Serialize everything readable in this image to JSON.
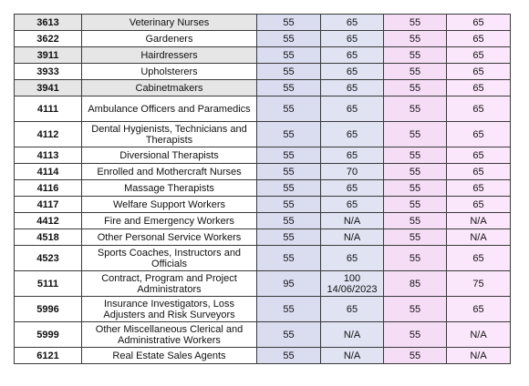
{
  "rows": [
    {
      "code": "3613",
      "title": "Veterinary Nurses",
      "v1": "55",
      "v2": "65",
      "v2_note": "",
      "v3": "55",
      "v4": "65"
    },
    {
      "code": "3622",
      "title": "Gardeners",
      "v1": "55",
      "v2": "65",
      "v2_note": "",
      "v3": "55",
      "v4": "65"
    },
    {
      "code": "3911",
      "title": "Hairdressers",
      "v1": "55",
      "v2": "65",
      "v2_note": "",
      "v3": "55",
      "v4": "65"
    },
    {
      "code": "3933",
      "title": "Upholsterers",
      "v1": "55",
      "v2": "65",
      "v2_note": "",
      "v3": "55",
      "v4": "65"
    },
    {
      "code": "3941",
      "title": "Cabinetmakers",
      "v1": "55",
      "v2": "65",
      "v2_note": "",
      "v3": "55",
      "v4": "65"
    },
    {
      "code": "4111",
      "title": "Ambulance Officers and Paramedics",
      "v1": "55",
      "v2": "65",
      "v2_note": "",
      "v3": "55",
      "v4": "65"
    },
    {
      "code": "4112",
      "title": "Dental Hygienists, Technicians and Therapists",
      "v1": "55",
      "v2": "65",
      "v2_note": "",
      "v3": "55",
      "v4": "65"
    },
    {
      "code": "4113",
      "title": "Diversional Therapists",
      "v1": "55",
      "v2": "65",
      "v2_note": "",
      "v3": "55",
      "v4": "65"
    },
    {
      "code": "4114",
      "title": "Enrolled and Mothercraft Nurses",
      "v1": "55",
      "v2": "70",
      "v2_note": "",
      "v3": "55",
      "v4": "65"
    },
    {
      "code": "4116",
      "title": "Massage Therapists",
      "v1": "55",
      "v2": "65",
      "v2_note": "",
      "v3": "55",
      "v4": "65"
    },
    {
      "code": "4117",
      "title": "Welfare Support Workers",
      "v1": "55",
      "v2": "65",
      "v2_note": "",
      "v3": "55",
      "v4": "65"
    },
    {
      "code": "4412",
      "title": "Fire and Emergency Workers",
      "v1": "55",
      "v2": "N/A",
      "v2_note": "",
      "v3": "55",
      "v4": "N/A"
    },
    {
      "code": "4518",
      "title": "Other Personal Service Workers",
      "v1": "55",
      "v2": "N/A",
      "v2_note": "",
      "v3": "55",
      "v4": "N/A"
    },
    {
      "code": "4523",
      "title": "Sports Coaches, Instructors and Officials",
      "v1": "55",
      "v2": "65",
      "v2_note": "",
      "v3": "55",
      "v4": "65"
    },
    {
      "code": "5111",
      "title": "Contract, Program and Project Administrators",
      "v1": "95",
      "v2": "100",
      "v2_note": "14/06/2023",
      "v3": "85",
      "v4": "75"
    },
    {
      "code": "5996",
      "title": "Insurance Investigators, Loss Adjusters and Risk Surveyors",
      "v1": "55",
      "v2": "65",
      "v2_note": "",
      "v3": "55",
      "v4": "65"
    },
    {
      "code": "5999",
      "title": "Other Miscellaneous Clerical and Administrative Workers",
      "v1": "55",
      "v2": "N/A",
      "v2_note": "",
      "v3": "55",
      "v4": "N/A"
    },
    {
      "code": "6121",
      "title": "Real Estate Sales Agents",
      "v1": "55",
      "v2": "N/A",
      "v2_note": "",
      "v3": "55",
      "v4": "N/A"
    }
  ]
}
